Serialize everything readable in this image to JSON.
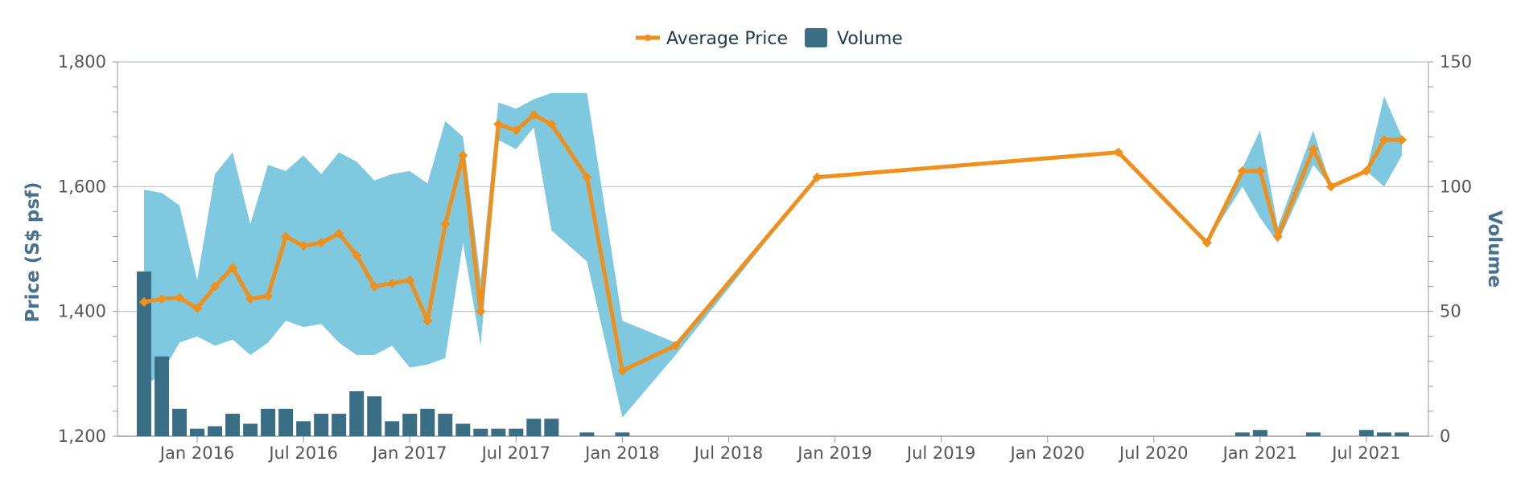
{
  "chart_data": {
    "type": "line+range+bar",
    "legend": [
      "Average Price",
      "Volume"
    ],
    "y_left": {
      "label": "Price (S$ psf)",
      "ticks": [
        "1,200",
        "1,400",
        "1,600",
        "1,800"
      ],
      "range": [
        1200,
        1800
      ]
    },
    "y_right": {
      "label": "Volume",
      "ticks": [
        "0",
        "50",
        "100",
        "150"
      ],
      "range": [
        0,
        150
      ]
    },
    "x_ticks": [
      "Jan 2016",
      "Jul 2016",
      "Jan 2017",
      "Jul 2017",
      "Jan 2018",
      "Jul 2018",
      "Jan 2019",
      "Jul 2019",
      "Jan 2020",
      "Jul 2020",
      "Jan 2021",
      "Jul 2021"
    ],
    "colors": {
      "price": "#f0901c",
      "range": "#7ec8e0",
      "volume": "#3a6e84"
    },
    "average_price": [
      [
        "2015-10",
        1415
      ],
      [
        "2015-11",
        1420
      ],
      [
        "2015-12",
        1422
      ],
      [
        "2016-01",
        1405
      ],
      [
        "2016-02",
        1440
      ],
      [
        "2016-03",
        1470
      ],
      [
        "2016-04",
        1420
      ],
      [
        "2016-05",
        1425
      ],
      [
        "2016-06",
        1520
      ],
      [
        "2016-07",
        1505
      ],
      [
        "2016-08",
        1510
      ],
      [
        "2016-09",
        1525
      ],
      [
        "2016-10",
        1490
      ],
      [
        "2016-11",
        1440
      ],
      [
        "2016-12",
        1445
      ],
      [
        "2017-01",
        1450
      ],
      [
        "2017-02",
        1385
      ],
      [
        "2017-03",
        1540
      ],
      [
        "2017-04",
        1650
      ],
      [
        "2017-05",
        1400
      ],
      [
        "2017-06",
        1700
      ],
      [
        "2017-07",
        1690
      ],
      [
        "2017-08",
        1715
      ],
      [
        "2017-09",
        1700
      ],
      [
        "2017-11",
        1615
      ],
      [
        "2018-01",
        1305
      ],
      [
        "2018-04",
        1345
      ],
      [
        "2018-12",
        1615
      ],
      [
        "2020-05",
        1655
      ],
      [
        "2020-10",
        1510
      ],
      [
        "2020-12",
        1625
      ],
      [
        "2021-01",
        1625
      ],
      [
        "2021-02",
        1520
      ],
      [
        "2021-04",
        1660
      ],
      [
        "2021-05",
        1600
      ],
      [
        "2021-07",
        1625
      ],
      [
        "2021-08",
        1675
      ],
      [
        "2021-09",
        1675
      ]
    ],
    "price_range": [
      [
        "2015-10",
        1280,
        1595
      ],
      [
        "2015-11",
        1300,
        1590
      ],
      [
        "2015-12",
        1350,
        1570
      ],
      [
        "2016-01",
        1360,
        1450
      ],
      [
        "2016-02",
        1345,
        1620
      ],
      [
        "2016-03",
        1355,
        1655
      ],
      [
        "2016-04",
        1330,
        1540
      ],
      [
        "2016-05",
        1350,
        1635
      ],
      [
        "2016-06",
        1385,
        1625
      ],
      [
        "2016-07",
        1375,
        1650
      ],
      [
        "2016-08",
        1380,
        1620
      ],
      [
        "2016-09",
        1350,
        1655
      ],
      [
        "2016-10",
        1330,
        1640
      ],
      [
        "2016-11",
        1330,
        1610
      ],
      [
        "2016-12",
        1345,
        1620
      ],
      [
        "2017-01",
        1310,
        1625
      ],
      [
        "2017-02",
        1315,
        1605
      ],
      [
        "2017-03",
        1325,
        1705
      ],
      [
        "2017-04",
        1510,
        1680
      ],
      [
        "2017-05",
        1345,
        1450
      ],
      [
        "2017-06",
        1675,
        1735
      ],
      [
        "2017-07",
        1660,
        1725
      ],
      [
        "2017-08",
        1695,
        1740
      ],
      [
        "2017-09",
        1530,
        1750
      ],
      [
        "2017-11",
        1480,
        1750
      ],
      [
        "2018-01",
        1230,
        1385
      ],
      [
        "2018-04",
        1330,
        1350
      ],
      [
        "2018-12",
        1615,
        1615
      ],
      [
        "2020-05",
        1655,
        1655
      ],
      [
        "2020-10",
        1510,
        1510
      ],
      [
        "2020-12",
        1600,
        1630
      ],
      [
        "2021-01",
        1550,
        1690
      ],
      [
        "2021-02",
        1510,
        1535
      ],
      [
        "2021-04",
        1635,
        1690
      ],
      [
        "2021-05",
        1600,
        1600
      ],
      [
        "2021-07",
        1625,
        1625
      ],
      [
        "2021-08",
        1600,
        1745
      ],
      [
        "2021-09",
        1650,
        1680
      ]
    ],
    "volume": [
      [
        "2015-10",
        66
      ],
      [
        "2015-11",
        32
      ],
      [
        "2015-12",
        11
      ],
      [
        "2016-01",
        3
      ],
      [
        "2016-02",
        4
      ],
      [
        "2016-03",
        9
      ],
      [
        "2016-04",
        5
      ],
      [
        "2016-05",
        11
      ],
      [
        "2016-06",
        11
      ],
      [
        "2016-07",
        6
      ],
      [
        "2016-08",
        9
      ],
      [
        "2016-09",
        9
      ],
      [
        "2016-10",
        18
      ],
      [
        "2016-11",
        16
      ],
      [
        "2016-12",
        6
      ],
      [
        "2017-01",
        9
      ],
      [
        "2017-02",
        11
      ],
      [
        "2017-03",
        9
      ],
      [
        "2017-04",
        5
      ],
      [
        "2017-05",
        3
      ],
      [
        "2017-06",
        3
      ],
      [
        "2017-07",
        3
      ],
      [
        "2017-08",
        7
      ],
      [
        "2017-09",
        7
      ],
      [
        "2017-11",
        1.5
      ],
      [
        "2018-01",
        1.5
      ],
      [
        "2020-12",
        1.5
      ],
      [
        "2021-01",
        2.5
      ],
      [
        "2021-04",
        1.5
      ],
      [
        "2021-07",
        2.5
      ],
      [
        "2021-08",
        1.5
      ],
      [
        "2021-09",
        1.5
      ]
    ]
  }
}
